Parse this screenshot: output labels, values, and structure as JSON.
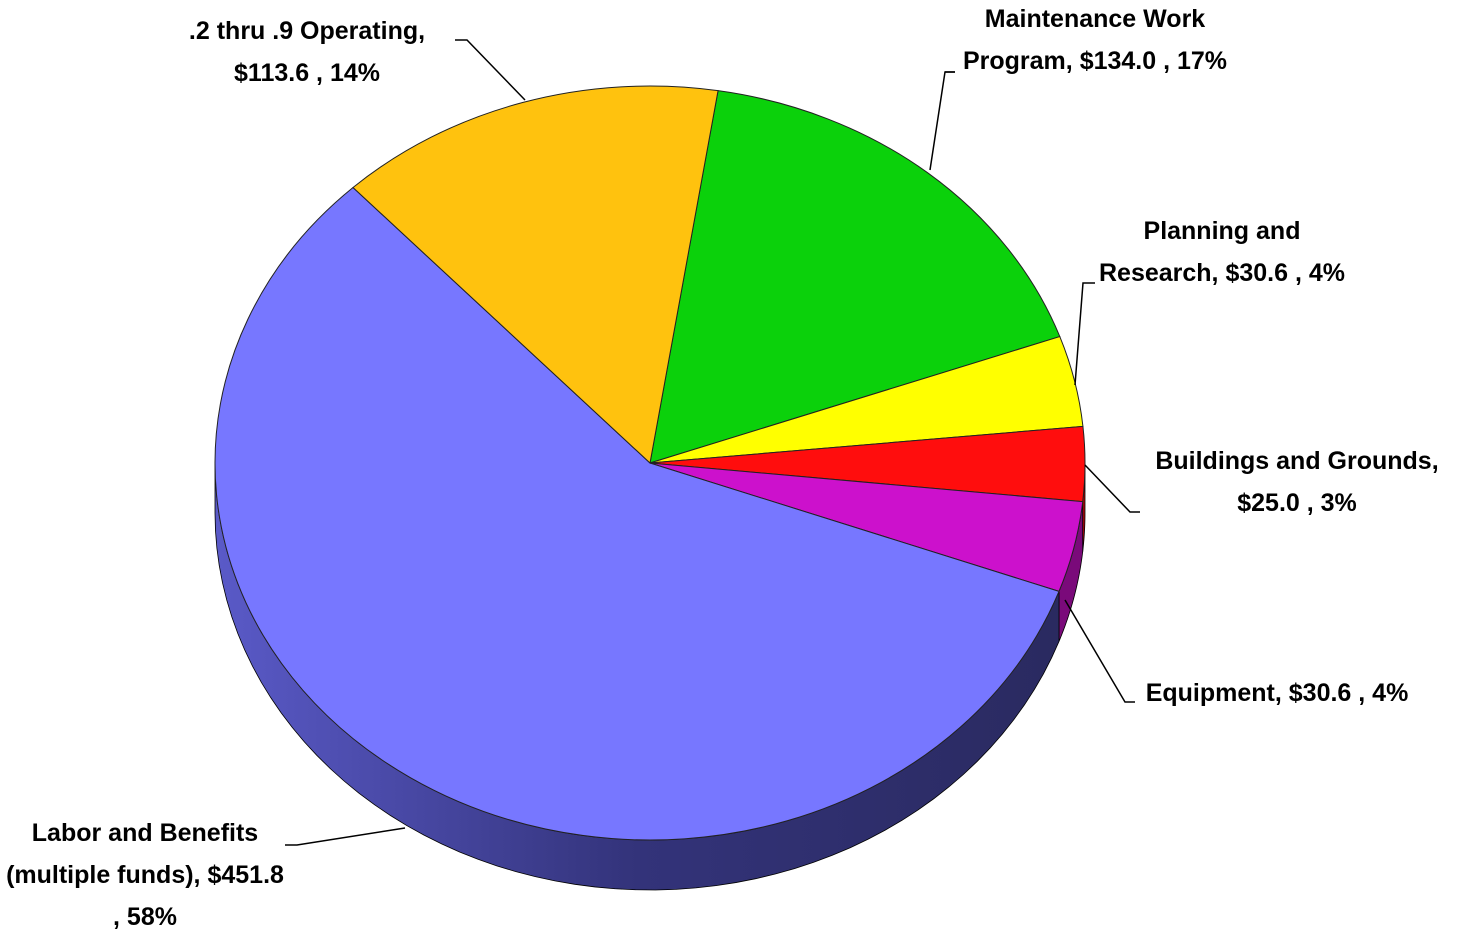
{
  "chart_data": {
    "type": "pie",
    "categories": [
      "Maintenance Work Program,",
      "Planning and Research,",
      "Buildings and Grounds,",
      "Equipment,",
      "Labor and Benefits (multiple funds),",
      ".2 thru .9 Operating,"
    ],
    "values": [
      134.0,
      30.6,
      25.0,
      30.6,
      451.8,
      113.6
    ],
    "value_labels": [
      "$134.0 , 17%",
      "$30.6 , 4%",
      "$25.0 , 3%",
      "$30.6 , 4%",
      "$451.8 , 58%",
      "$113.6 , 14%"
    ],
    "colors": [
      "#0bd10b",
      "#ffff00",
      "#ff0d0d",
      "#cc11cc",
      "#7777ff",
      "#ffc20e"
    ]
  }
}
